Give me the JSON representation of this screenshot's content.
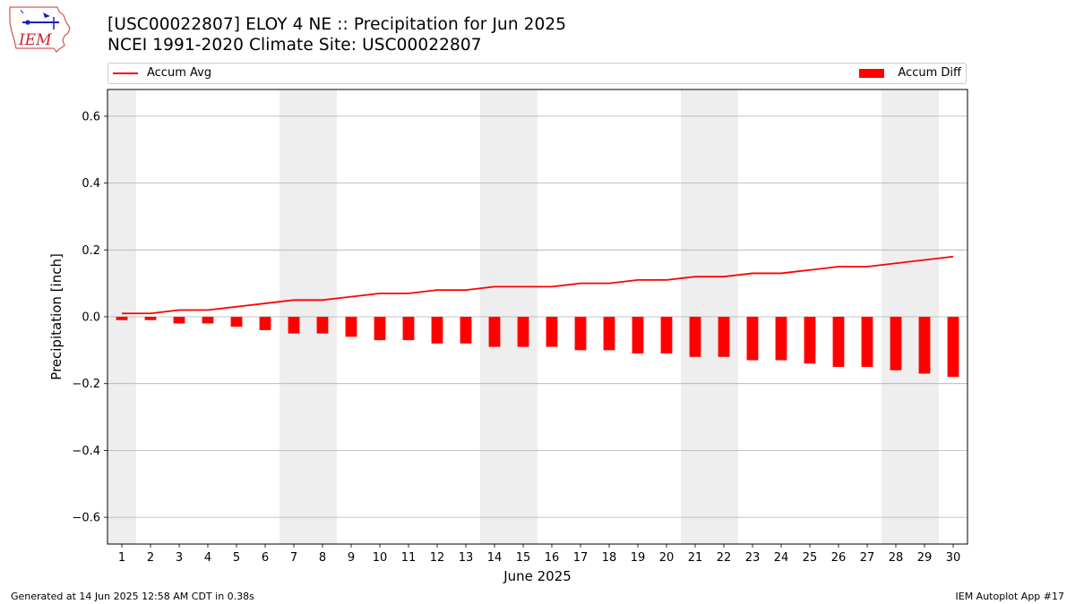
{
  "header": {
    "title_line1": "[USC00022807] ELOY 4 NE :: Precipitation for Jun 2025",
    "title_line2": "NCEI 1991-2020 Climate Site: USC00022807",
    "logo_text": "IEM"
  },
  "legend": {
    "line_label": "Accum Avg",
    "bar_label": "Accum Diff"
  },
  "footer": {
    "left": "Generated at 14 Jun 2025 12:58 AM CDT in 0.38s",
    "right": "IEM Autoplot App #17"
  },
  "colors": {
    "series": "#ff0000",
    "weekend_shade": "#eeeeee",
    "grid": "#b0b0b0"
  },
  "chart_data": {
    "type": "bar",
    "xlabel": "June 2025",
    "ylabel": "Precipitation [inch]",
    "ylim": [
      -0.68,
      0.68
    ],
    "yticks": [
      -0.6,
      -0.4,
      -0.2,
      0.0,
      0.2,
      0.4,
      0.6
    ],
    "ytick_labels": [
      "−0.6",
      "−0.4",
      "−0.2",
      "0.0",
      "0.2",
      "0.4",
      "0.6"
    ],
    "grid": true,
    "legend_placement": "top",
    "categories": [
      "1",
      "2",
      "3",
      "4",
      "5",
      "6",
      "7",
      "8",
      "9",
      "10",
      "11",
      "12",
      "13",
      "14",
      "15",
      "16",
      "17",
      "18",
      "19",
      "20",
      "21",
      "22",
      "23",
      "24",
      "25",
      "26",
      "27",
      "28",
      "29",
      "30"
    ],
    "series": [
      {
        "name": "Accum Avg",
        "type": "line",
        "values": [
          0.01,
          0.01,
          0.02,
          0.02,
          0.03,
          0.04,
          0.05,
          0.05,
          0.06,
          0.07,
          0.07,
          0.08,
          0.08,
          0.09,
          0.09,
          0.09,
          0.1,
          0.1,
          0.11,
          0.11,
          0.12,
          0.12,
          0.13,
          0.13,
          0.14,
          0.15,
          0.15,
          0.16,
          0.17,
          0.18
        ]
      },
      {
        "name": "Accum Diff",
        "type": "bar",
        "values": [
          -0.01,
          -0.01,
          -0.02,
          -0.02,
          -0.03,
          -0.04,
          -0.05,
          -0.05,
          -0.06,
          -0.07,
          -0.07,
          -0.08,
          -0.08,
          -0.09,
          -0.09,
          -0.09,
          -0.1,
          -0.1,
          -0.11,
          -0.11,
          -0.12,
          -0.12,
          -0.13,
          -0.13,
          -0.14,
          -0.15,
          -0.15,
          -0.16,
          -0.17,
          -0.18
        ]
      }
    ],
    "weekend_days": [
      1,
      7,
      8,
      14,
      15,
      21,
      22,
      28,
      29
    ]
  }
}
